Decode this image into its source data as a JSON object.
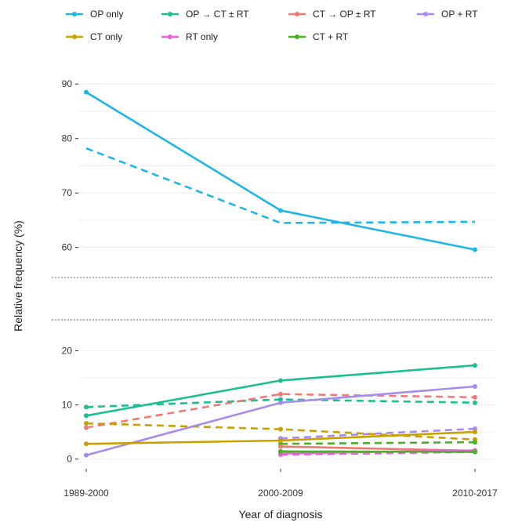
{
  "chart_data": {
    "type": "line",
    "xlabel": "Year of diagnosis",
    "ylabel": "Relative frequency (%)",
    "categories": [
      "1989-2000",
      "2000-2009",
      "2010-2017"
    ],
    "axis_break": {
      "lower_range": [
        -2,
        22
      ],
      "upper_range": [
        55,
        92
      ]
    },
    "y_ticks_lower": [
      0,
      10,
      20
    ],
    "y_ticks_upper": [
      60,
      70,
      80,
      90
    ],
    "grid": "horizontal",
    "legend_position": "top",
    "legend": [
      {
        "label": "OP only",
        "color": "#1fb5e6"
      },
      {
        "label": "OP → CT ± RT",
        "color": "#1cbf8e"
      },
      {
        "label": "CT → OP ± RT",
        "color": "#f07a72"
      },
      {
        "label": "OP + RT",
        "color": "#a78bf0"
      },
      {
        "label": "CT only",
        "color": "#c9a000"
      },
      {
        "label": "RT only",
        "color": "#ea5fd5"
      },
      {
        "label": "CT + RT",
        "color": "#45b324"
      }
    ],
    "series": [
      {
        "name": "OP only",
        "style": "solid",
        "color": "#1fb5e6",
        "values": [
          88.5,
          66.8,
          59.6
        ],
        "markers": true
      },
      {
        "name": "OP only",
        "style": "dashed",
        "color": "#1fb5e6",
        "values": [
          78.2,
          64.5,
          64.7
        ],
        "markers": false
      },
      {
        "name": "OP → CT ± RT",
        "style": "solid",
        "color": "#1cbf8e",
        "values": [
          8.0,
          14.5,
          17.3
        ],
        "markers": true
      },
      {
        "name": "OP → CT ± RT",
        "style": "dashed",
        "color": "#1cbf8e",
        "values": [
          9.6,
          11.0,
          10.4
        ],
        "markers": true
      },
      {
        "name": "CT → OP ± RT",
        "style": "solid",
        "color": "#f07a72",
        "values": [
          null,
          2.3,
          1.5
        ],
        "markers": true
      },
      {
        "name": "CT → OP ± RT",
        "style": "dashed",
        "color": "#f07a72",
        "values": [
          5.8,
          12.0,
          11.4
        ],
        "markers": true
      },
      {
        "name": "OP + RT",
        "style": "solid",
        "color": "#a78bf0",
        "values": [
          0.7,
          10.4,
          13.4
        ],
        "markers": true
      },
      {
        "name": "OP + RT",
        "style": "dashed",
        "color": "#a78bf0",
        "values": [
          null,
          3.8,
          5.6
        ],
        "markers": true
      },
      {
        "name": "CT only",
        "style": "solid",
        "color": "#c9a000",
        "values": [
          2.8,
          3.4,
          5.0
        ],
        "markers": true
      },
      {
        "name": "CT only",
        "style": "dashed",
        "color": "#c9a000",
        "values": [
          6.6,
          5.5,
          3.6
        ],
        "markers": true
      },
      {
        "name": "RT only",
        "style": "solid",
        "color": "#ea5fd5",
        "values": [
          null,
          1.0,
          1.6
        ],
        "markers": true
      },
      {
        "name": "RT only",
        "style": "dashed",
        "color": "#ea5fd5",
        "values": [
          null,
          0.8,
          1.3
        ],
        "markers": true
      },
      {
        "name": "CT + RT",
        "style": "solid",
        "color": "#45b324",
        "values": [
          null,
          1.4,
          1.3
        ],
        "markers": true
      },
      {
        "name": "CT + RT",
        "style": "dashed",
        "color": "#45b324",
        "values": [
          null,
          2.8,
          3.1
        ],
        "markers": true
      }
    ]
  }
}
